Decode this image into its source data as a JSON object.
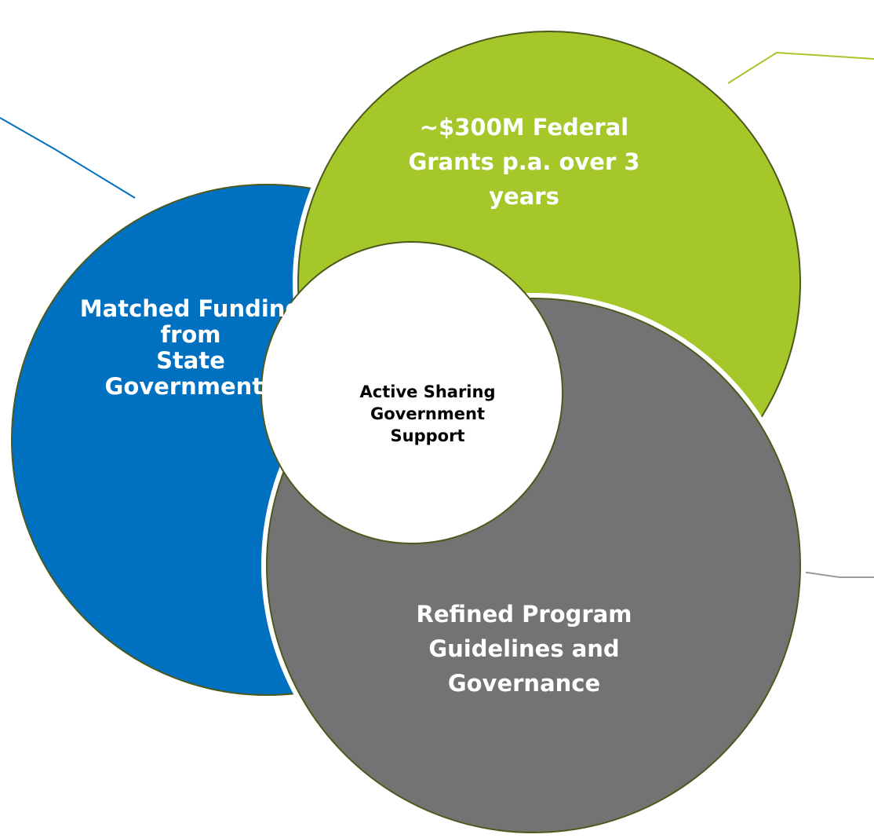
{
  "nodes": [
    {
      "label_lines": [
        "~$300M Federal",
        "Grants p.a. over 3",
        "years"
      ]
    },
    {
      "label_lines": [
        "Matched Funding",
        "from",
        "State",
        "Governments"
      ]
    },
    {
      "label_lines": [
        "Refined Program",
        "Guidelines and",
        "Governance"
      ]
    }
  ],
  "center": {
    "label_lines": [
      "Active Sharing",
      "Government",
      "Support"
    ]
  }
}
